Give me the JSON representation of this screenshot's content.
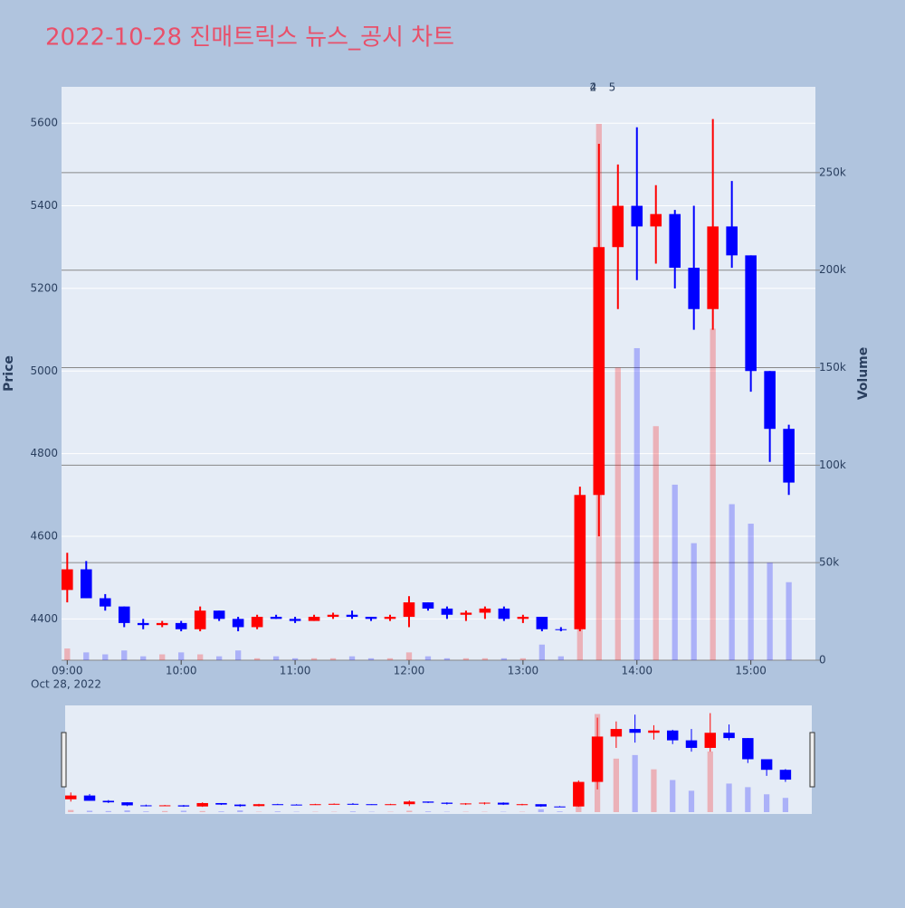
{
  "chart_data": {
    "type": "candlestick",
    "title": "2022-10-28 진매트릭스 뉴스_공시 차트",
    "ylabel": "Price",
    "y2label": "Volume",
    "x": [
      "09:00",
      "09:10",
      "09:20",
      "09:30",
      "09:40",
      "09:50",
      "10:00",
      "10:10",
      "10:20",
      "10:30",
      "10:40",
      "10:50",
      "11:00",
      "11:10",
      "11:20",
      "11:30",
      "11:40",
      "11:50",
      "12:00",
      "12:10",
      "12:20",
      "12:30",
      "12:40",
      "12:50",
      "13:00",
      "13:10",
      "13:20",
      "13:30",
      "13:40",
      "13:50",
      "14:00",
      "14:10",
      "14:20",
      "14:30",
      "14:40",
      "14:50",
      "15:00",
      "15:10",
      "15:20"
    ],
    "open": [
      4470,
      4520,
      4450,
      4430,
      4390,
      4385,
      4390,
      4375,
      4420,
      4400,
      4380,
      4405,
      4400,
      4395,
      4405,
      4410,
      4405,
      4400,
      4405,
      4440,
      4425,
      4410,
      4415,
      4425,
      4400,
      4405,
      4375,
      4375,
      4700,
      5300,
      5400,
      5350,
      5380,
      5250,
      5150,
      5350,
      5280,
      5000,
      4860
    ],
    "high": [
      4560,
      4540,
      4460,
      4430,
      4400,
      4395,
      4395,
      4430,
      4420,
      4405,
      4410,
      4410,
      4405,
      4410,
      4415,
      4420,
      4405,
      4410,
      4455,
      4440,
      4430,
      4420,
      4430,
      4430,
      4410,
      4405,
      4380,
      4720,
      5550,
      5500,
      5590,
      5450,
      5390,
      5400,
      5610,
      5460,
      5280,
      5000,
      4870
    ],
    "low": [
      4440,
      4450,
      4420,
      4380,
      4375,
      4380,
      4370,
      4370,
      4395,
      4370,
      4375,
      4400,
      4390,
      4395,
      4400,
      4400,
      4395,
      4395,
      4380,
      4420,
      4400,
      4395,
      4400,
      4395,
      4390,
      4370,
      4370,
      4370,
      4600,
      5150,
      5220,
      5260,
      5200,
      5100,
      5100,
      5250,
      4950,
      4780,
      4700
    ],
    "close": [
      4520,
      4450,
      4430,
      4390,
      4385,
      4390,
      4375,
      4420,
      4400,
      4380,
      4405,
      4400,
      4395,
      4405,
      4410,
      4405,
      4400,
      4405,
      4440,
      4425,
      4410,
      4415,
      4425,
      4400,
      4405,
      4375,
      4374,
      4700,
      5300,
      5400,
      5350,
      5380,
      5250,
      5150,
      5350,
      5280,
      5000,
      4860,
      4730
    ],
    "volume": [
      6000,
      4000,
      3000,
      5000,
      2000,
      3000,
      4000,
      3000,
      2000,
      5000,
      1000,
      2000,
      1000,
      1000,
      1000,
      2000,
      1000,
      1000,
      4000,
      2000,
      1000,
      1000,
      1000,
      1000,
      1000,
      8000,
      2000,
      50000,
      275000,
      150000,
      160000,
      120000,
      90000,
      60000,
      170000,
      80000,
      70000,
      50000,
      40000
    ],
    "increasing_color": "#ff0000",
    "decreasing_color": "#0000ff",
    "xlim": [
      "08:57",
      "15:34"
    ],
    "xticks": [
      "09:00",
      "10:00",
      "11:00",
      "12:00",
      "13:00",
      "14:00",
      "15:00"
    ],
    "x_date_label": "Oct 28, 2022",
    "ylim": [
      4300,
      5688
    ],
    "yticks": [
      4400,
      4600,
      4800,
      5000,
      5200,
      5400,
      5600
    ],
    "y2lim": [
      0,
      294000
    ],
    "y2ticks": [
      {
        "value": 0,
        "label": "0"
      },
      {
        "value": 50000,
        "label": "50k"
      },
      {
        "value": 100000,
        "label": "100k"
      },
      {
        "value": 150000,
        "label": "150k"
      },
      {
        "value": 200000,
        "label": "200k"
      },
      {
        "value": 250000,
        "label": "250k"
      }
    ],
    "annotations": [
      {
        "text": "2",
        "x": "13:37"
      },
      {
        "text": "4",
        "x": "13:37"
      },
      {
        "text": "5",
        "x": "13:47"
      }
    ],
    "rangeslider": true
  }
}
